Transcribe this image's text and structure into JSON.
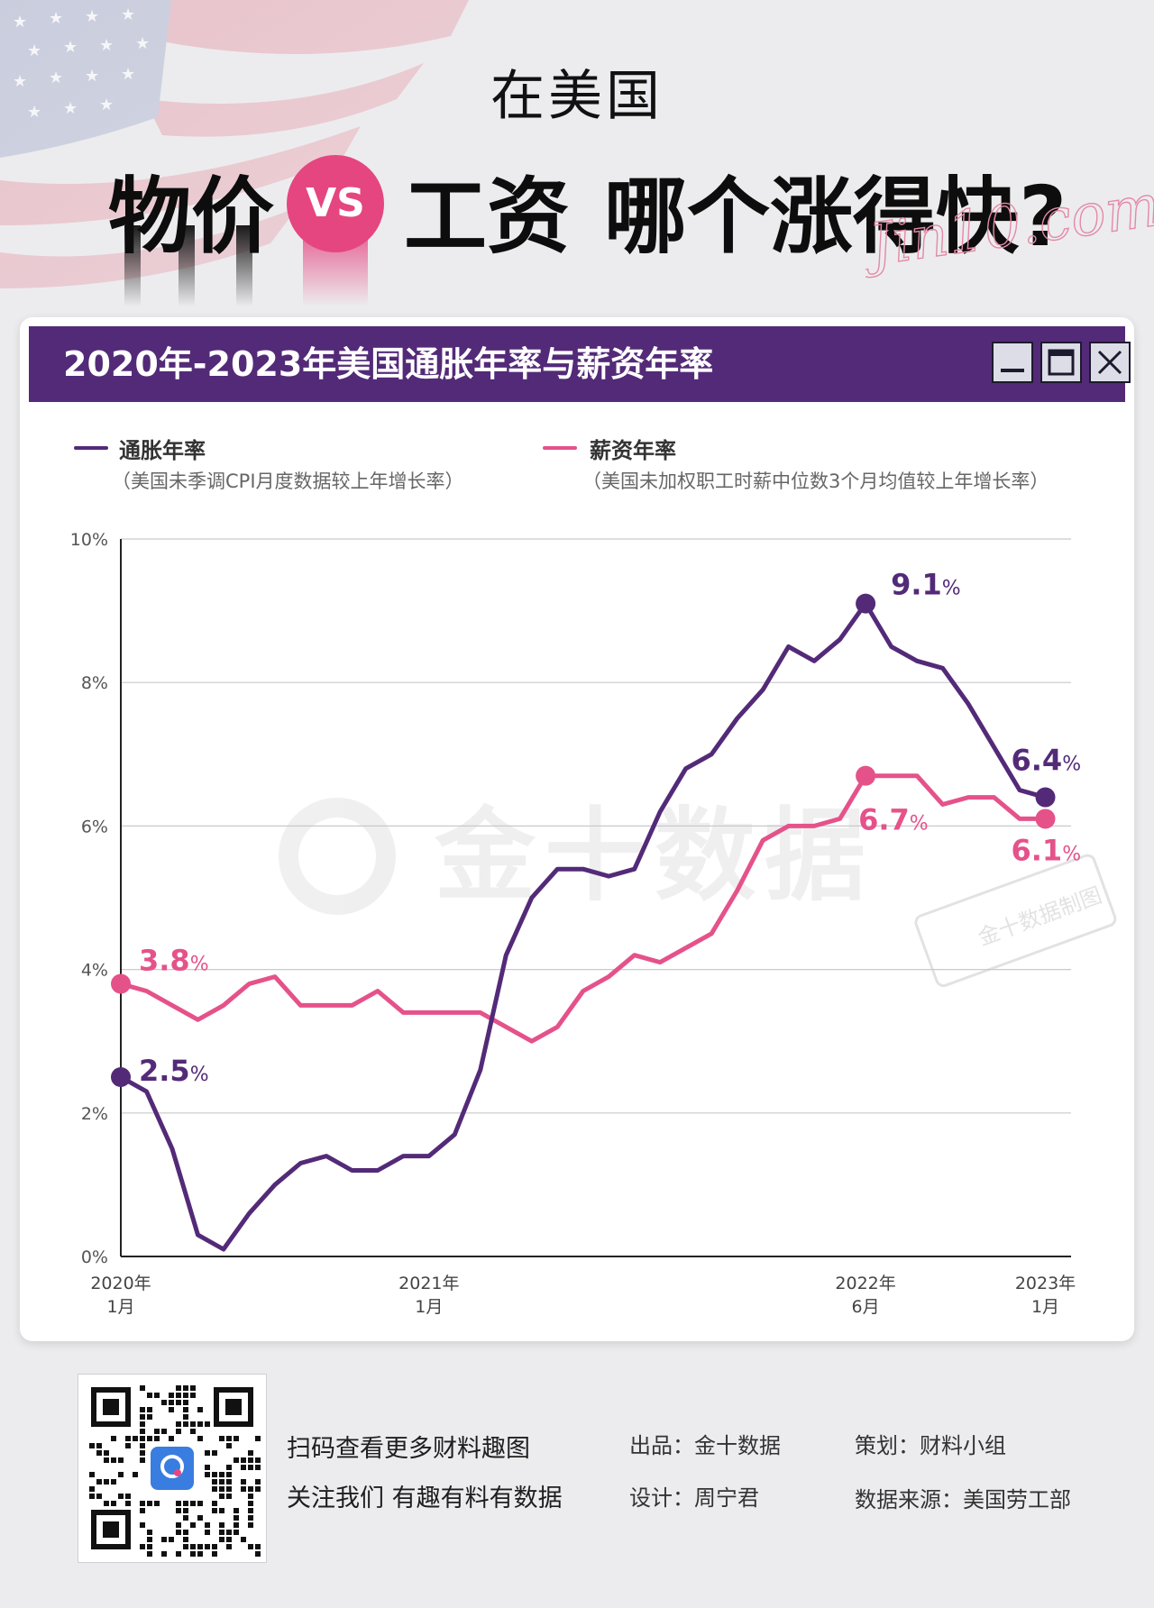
{
  "header": {
    "subtitle": "在美国",
    "word_prices": "物价",
    "vs": "VS",
    "word_wages": "工资",
    "question": "哪个涨得快?",
    "signature": "Jin10.com"
  },
  "card": {
    "title": "2020年-2023年美国通胀年率与薪资年率",
    "window_buttons": [
      "minimize-icon",
      "maximize-icon",
      "close-icon"
    ]
  },
  "legend": [
    {
      "label": "通胀年率",
      "note": "（美国未季调CPI月度数据较上年增长率）",
      "color": "#532a78"
    },
    {
      "label": "薪资年率",
      "note": "（美国未加权职工时薪中位数3个月均值较上年增长率）",
      "color": "#e5528a"
    }
  ],
  "watermark": {
    "brand": "金十数据",
    "stamp": "金十数据制图"
  },
  "chart_data": {
    "type": "line",
    "title": "2020年-2023年美国通胀年率与薪资年率",
    "x_unit": "month index from 2020年1月",
    "x_ticks": [
      {
        "x": 0,
        "line1": "2020年",
        "line2": "1月"
      },
      {
        "x": 12,
        "line1": "2021年",
        "line2": "1月"
      },
      {
        "x": 29,
        "line1": "2022年",
        "line2": "6月"
      },
      {
        "x": 36,
        "line1": "2023年",
        "line2": "1月"
      }
    ],
    "y_ticks": [
      "0%",
      "2%",
      "4%",
      "6%",
      "8%",
      "10%"
    ],
    "ylim": [
      0,
      10
    ],
    "xlim": [
      0,
      37
    ],
    "grid": true,
    "series": [
      {
        "name": "通胀年率",
        "color": "#532a78",
        "values": [
          2.5,
          2.3,
          1.5,
          0.3,
          0.1,
          0.6,
          1.0,
          1.3,
          1.4,
          1.2,
          1.2,
          1.4,
          1.4,
          1.7,
          2.6,
          4.2,
          5.0,
          5.4,
          5.4,
          5.3,
          5.4,
          6.2,
          6.8,
          7.0,
          7.5,
          7.9,
          8.5,
          8.3,
          8.6,
          9.1,
          8.5,
          8.3,
          8.2,
          7.7,
          7.1,
          6.5,
          6.4
        ],
        "labels": [
          {
            "x": 0,
            "value": "2.5",
            "unit": "%"
          },
          {
            "x": 29,
            "value": "9.1",
            "unit": "%"
          },
          {
            "x": 36,
            "value": "6.4",
            "unit": "%"
          }
        ]
      },
      {
        "name": "薪资年率",
        "color": "#e5528a",
        "values": [
          3.8,
          3.7,
          3.5,
          3.3,
          3.5,
          3.8,
          3.9,
          3.5,
          3.5,
          3.5,
          3.7,
          3.4,
          3.4,
          3.4,
          3.4,
          3.2,
          3.0,
          3.2,
          3.7,
          3.9,
          4.2,
          4.1,
          4.3,
          4.5,
          5.1,
          5.8,
          6.0,
          6.0,
          6.1,
          6.7,
          6.7,
          6.7,
          6.3,
          6.4,
          6.4,
          6.1,
          6.1
        ],
        "labels": [
          {
            "x": 0,
            "value": "3.8",
            "unit": "%"
          },
          {
            "x": 29,
            "value": "6.7",
            "unit": "%"
          },
          {
            "x": 36,
            "value": "6.1",
            "unit": "%"
          }
        ]
      }
    ]
  },
  "footer": {
    "scan_line1": "扫码查看更多财料趣图",
    "scan_line2": "关注我们 有趣有料有数据",
    "credit_producer": "出品：金十数据",
    "credit_design": "设计：周宁君",
    "credit_plan": "策划：财料小组",
    "credit_source": "数据来源：美国劳工部"
  }
}
